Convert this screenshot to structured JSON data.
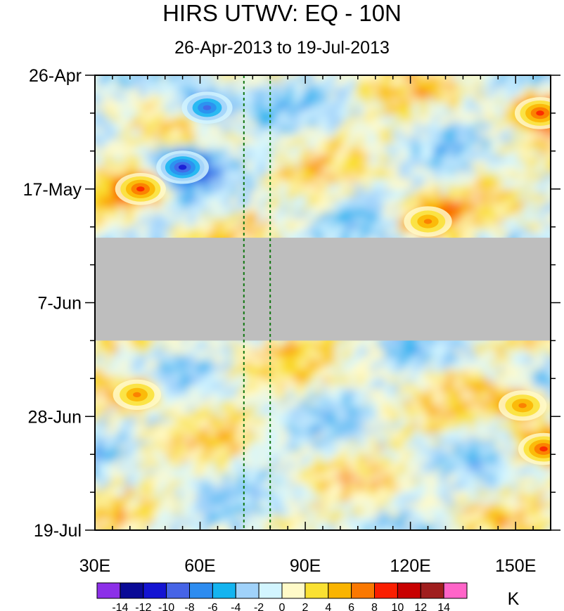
{
  "chart_data": {
    "type": "heatmap",
    "title": "HIRS UTWV: EQ - 10N",
    "subtitle": "26-Apr-2013 to 19-Jul-2013",
    "xlabel": "",
    "ylabel": "",
    "x_range": [
      30,
      160
    ],
    "x_units": "degrees East longitude",
    "y_range": [
      "26-Apr-2013",
      "19-Jul-2013"
    ],
    "y_range_days": [
      0,
      84
    ],
    "x_ticks": [
      {
        "value": 30,
        "label": "30E"
      },
      {
        "value": 60,
        "label": "60E"
      },
      {
        "value": 90,
        "label": "90E"
      },
      {
        "value": 120,
        "label": "120E"
      },
      {
        "value": 150,
        "label": "150E"
      }
    ],
    "y_ticks": [
      {
        "day": 0,
        "label": "26-Apr"
      },
      {
        "day": 21,
        "label": "17-May"
      },
      {
        "day": 42,
        "label": "7-Jun"
      },
      {
        "day": 63,
        "label": "28-Jun"
      },
      {
        "day": 84,
        "label": "19-Jul"
      }
    ],
    "reference_lines_lon": [
      72.5,
      80
    ],
    "missing_data": {
      "day_start": 30,
      "day_end": 49,
      "color": "#bebebe"
    },
    "colorbar": {
      "units": "K",
      "levels": [
        -14,
        -12,
        -10,
        -8,
        -6,
        -4,
        -2,
        0,
        2,
        4,
        6,
        8,
        10,
        12,
        14
      ],
      "labels": [
        "-14",
        "-12",
        "-10",
        "-8",
        "-6",
        "-4",
        "-2",
        "0",
        "2",
        "4",
        "6",
        "8",
        "10",
        "12",
        "14"
      ],
      "colors": [
        "#8c2fe8",
        "#0a0a96",
        "#1414d2",
        "#4664e6",
        "#2d8cf0",
        "#14b4f0",
        "#a0d2fa",
        "#d2f5ff",
        "#fffac8",
        "#fae132",
        "#fab400",
        "#fa7800",
        "#fa1e00",
        "#c80000",
        "#a01e1e",
        "#ff64c8"
      ]
    },
    "features": [
      {
        "name": "negative anomaly",
        "lon": 62,
        "day": 6,
        "value": -10
      },
      {
        "name": "negative anomaly",
        "lon": 55,
        "day": 17,
        "value": -12
      },
      {
        "name": "positive anomaly",
        "lon": 43,
        "day": 21,
        "value": 10
      },
      {
        "name": "positive anomaly",
        "lon": 157,
        "day": 7,
        "value": 10
      },
      {
        "name": "positive anomaly",
        "lon": 125,
        "day": 27,
        "value": 8
      },
      {
        "name": "positive anomaly",
        "lon": 42,
        "day": 59,
        "value": 8
      },
      {
        "name": "positive anomaly",
        "lon": 158,
        "day": 69,
        "value": 10
      },
      {
        "name": "positive anomaly",
        "lon": 152,
        "day": 61,
        "value": 8
      }
    ]
  }
}
